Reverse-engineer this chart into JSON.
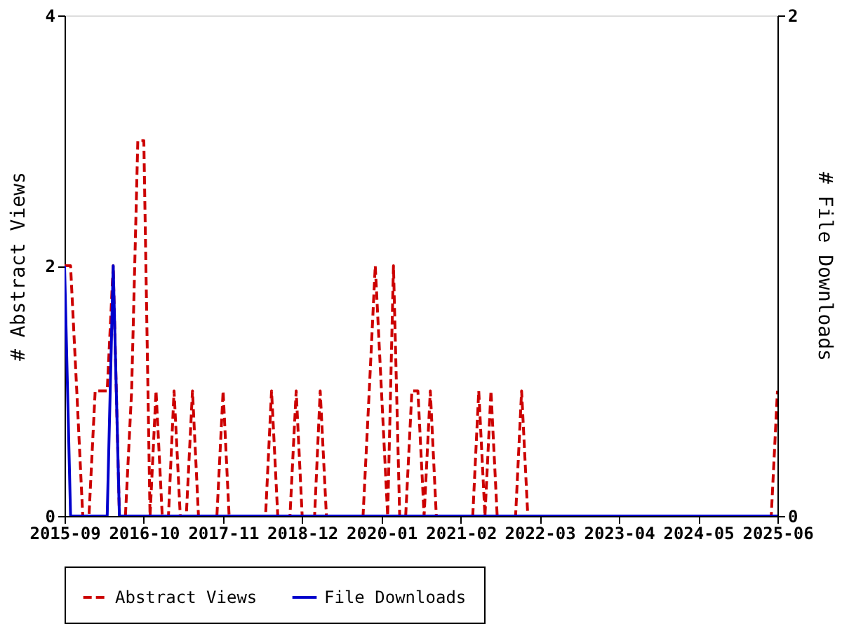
{
  "chart_data": {
    "type": "line",
    "ylabel": "# Abstract Views",
    "y2label": "# File Downloads",
    "x": [
      "2015-09",
      "2015-10",
      "2015-11",
      "2015-12",
      "2016-01",
      "2016-02",
      "2016-03",
      "2016-04",
      "2016-05",
      "2016-06",
      "2016-07",
      "2016-08",
      "2016-09",
      "2016-10",
      "2016-11",
      "2016-12",
      "2017-01",
      "2017-02",
      "2017-03",
      "2017-04",
      "2017-05",
      "2017-06",
      "2017-07",
      "2017-08",
      "2017-09",
      "2017-10",
      "2017-11",
      "2017-12",
      "2018-01",
      "2018-02",
      "2018-03",
      "2018-04",
      "2018-05",
      "2018-06",
      "2018-07",
      "2018-08",
      "2018-09",
      "2018-10",
      "2018-11",
      "2018-12",
      "2019-01",
      "2019-02",
      "2019-03",
      "2019-04",
      "2019-05",
      "2019-06",
      "2019-07",
      "2019-08",
      "2019-09",
      "2019-10",
      "2019-11",
      "2019-12",
      "2020-01",
      "2020-02",
      "2020-03",
      "2020-04",
      "2020-05",
      "2020-06",
      "2020-07",
      "2020-08",
      "2020-09",
      "2020-10",
      "2020-11",
      "2020-12",
      "2021-01",
      "2021-02",
      "2021-03",
      "2021-04",
      "2021-05",
      "2021-06",
      "2021-07",
      "2021-08",
      "2021-09",
      "2021-10",
      "2021-11",
      "2021-12",
      "2022-01",
      "2022-02",
      "2022-03",
      "2022-04",
      "2022-05",
      "2022-06",
      "2022-07",
      "2022-08",
      "2022-09",
      "2022-10",
      "2022-11",
      "2022-12",
      "2023-01",
      "2023-02",
      "2023-03",
      "2023-04",
      "2023-05",
      "2023-06",
      "2023-07",
      "2023-08",
      "2023-09",
      "2023-10",
      "2023-11",
      "2023-12",
      "2024-01",
      "2024-02",
      "2024-03",
      "2024-04",
      "2024-05",
      "2024-06",
      "2024-07",
      "2024-08",
      "2024-09",
      "2024-10",
      "2024-11",
      "2024-12",
      "2025-01",
      "2025-02",
      "2025-03",
      "2025-04",
      "2025-05",
      "2025-06"
    ],
    "series": [
      {
        "name": "Abstract Views",
        "color": "#cc0000",
        "line_style": "dashed",
        "axis": "y",
        "values": [
          2,
          2,
          1,
          0,
          0,
          1,
          1,
          1,
          2,
          0,
          0,
          1,
          3,
          3,
          0,
          1,
          0,
          0,
          1,
          0,
          0,
          1,
          0,
          0,
          0,
          0,
          1,
          0,
          0,
          0,
          0,
          0,
          0,
          0,
          1,
          0,
          0,
          0,
          1,
          0,
          0,
          0,
          1,
          0,
          0,
          0,
          0,
          0,
          0,
          0,
          1,
          2,
          1,
          0,
          2,
          0,
          0,
          1,
          1,
          0,
          1,
          0,
          0,
          0,
          0,
          0,
          0,
          0,
          1,
          0,
          1,
          0,
          0,
          0,
          0,
          1,
          0,
          0,
          0,
          0,
          0,
          0,
          0,
          0,
          0,
          0,
          0,
          0,
          0,
          0,
          0,
          0,
          0,
          0,
          0,
          0,
          0,
          0,
          0,
          0,
          0,
          0,
          0,
          0,
          0,
          0,
          0,
          0,
          0,
          0,
          0,
          0,
          0,
          0,
          0,
          0,
          0,
          1
        ]
      },
      {
        "name": "File Downloads",
        "color": "#0000cc",
        "line_style": "solid",
        "axis": "y2",
        "values": [
          1,
          0,
          0,
          0,
          0,
          0,
          0,
          0,
          1,
          0,
          0,
          0,
          0,
          0,
          0,
          0,
          0,
          0,
          0,
          0,
          0,
          0,
          0,
          0,
          0,
          0,
          0,
          0,
          0,
          0,
          0,
          0,
          0,
          0,
          0,
          0,
          0,
          0,
          0,
          0,
          0,
          0,
          0,
          0,
          0,
          0,
          0,
          0,
          0,
          0,
          0,
          0,
          0,
          0,
          0,
          0,
          0,
          0,
          0,
          0,
          0,
          0,
          0,
          0,
          0,
          0,
          0,
          0,
          0,
          0,
          0,
          0,
          0,
          0,
          0,
          0,
          0,
          0,
          0,
          0,
          0,
          0,
          0,
          0,
          0,
          0,
          0,
          0,
          0,
          0,
          0,
          0,
          0,
          0,
          0,
          0,
          0,
          0,
          0,
          0,
          0,
          0,
          0,
          0,
          0,
          0,
          0,
          0,
          0,
          0,
          0,
          0,
          0,
          0,
          0,
          0,
          0,
          0
        ]
      }
    ],
    "xlim": [
      "2015-09",
      "2025-06"
    ],
    "xticks": [
      "2015-09",
      "2016-10",
      "2017-11",
      "2018-12",
      "2020-01",
      "2021-02",
      "2022-03",
      "2023-04",
      "2024-05",
      "2025-06"
    ],
    "ylim": [
      0,
      4
    ],
    "yticks": [
      0,
      2,
      4
    ],
    "y2lim": [
      0,
      2
    ],
    "y2ticks": [
      0,
      2
    ],
    "grid": false,
    "legend": "bottom",
    "marker": "none"
  }
}
